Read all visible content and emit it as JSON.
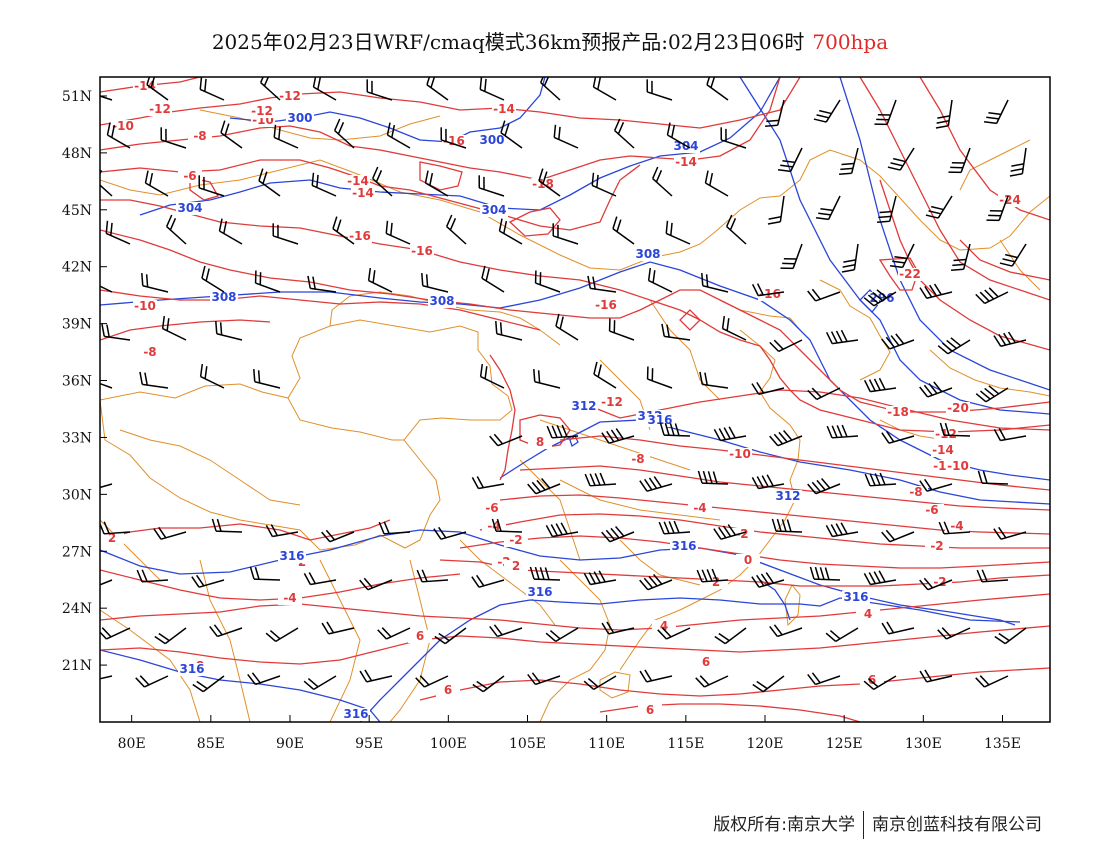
{
  "title": {
    "main": "2025年02月23日WRF/cmaq模式36km预报产品:02月23日06时",
    "level": "700hpa"
  },
  "colors": {
    "temperature": "#e03a3a",
    "height": "#2a45d8",
    "boundary": "#e0902a",
    "wind": "#000000",
    "level_text": "#e02a2a"
  },
  "map": {
    "lon_range": [
      78,
      138
    ],
    "lat_range": [
      18,
      52
    ],
    "lon_ticks": [
      "80E",
      "85E",
      "90E",
      "95E",
      "100E",
      "105E",
      "110E",
      "115E",
      "120E",
      "125E",
      "130E",
      "135E"
    ],
    "lat_ticks": [
      "51N",
      "48N",
      "45N",
      "42N",
      "39N",
      "36N",
      "33N",
      "30N",
      "27N",
      "24N",
      "21N"
    ],
    "temp_labels": [
      "-14",
      "-12",
      "-10",
      "-10",
      "-12",
      "-8",
      "-6",
      "-14",
      "-16",
      "-16",
      "-18",
      "-12",
      "-14",
      "-14",
      "-16",
      "-16",
      "-10",
      "-8",
      "-12",
      "-14",
      "-16",
      "-22",
      "-24",
      "-18",
      "-20",
      "-12",
      "-14",
      "-12",
      "-10",
      "-8",
      "-10",
      "-8",
      "-6",
      "-4",
      "-6",
      "-4",
      "-2",
      "-2",
      "-4",
      "2",
      "2",
      "-4",
      "-2",
      "0",
      "-2",
      "2",
      "-2",
      "2",
      "4",
      "4",
      "6",
      "6",
      "6",
      "6",
      "6",
      "8",
      "8"
    ],
    "height_labels": [
      "300",
      "300",
      "304",
      "304",
      "304",
      "308",
      "308",
      "308",
      "296",
      "312",
      "312",
      "312",
      "316",
      "316",
      "316",
      "316",
      "316",
      "316",
      "316"
    ]
  },
  "footer": {
    "left": "版权所有:南京大学",
    "right": "南京创蓝科技有限公司"
  }
}
